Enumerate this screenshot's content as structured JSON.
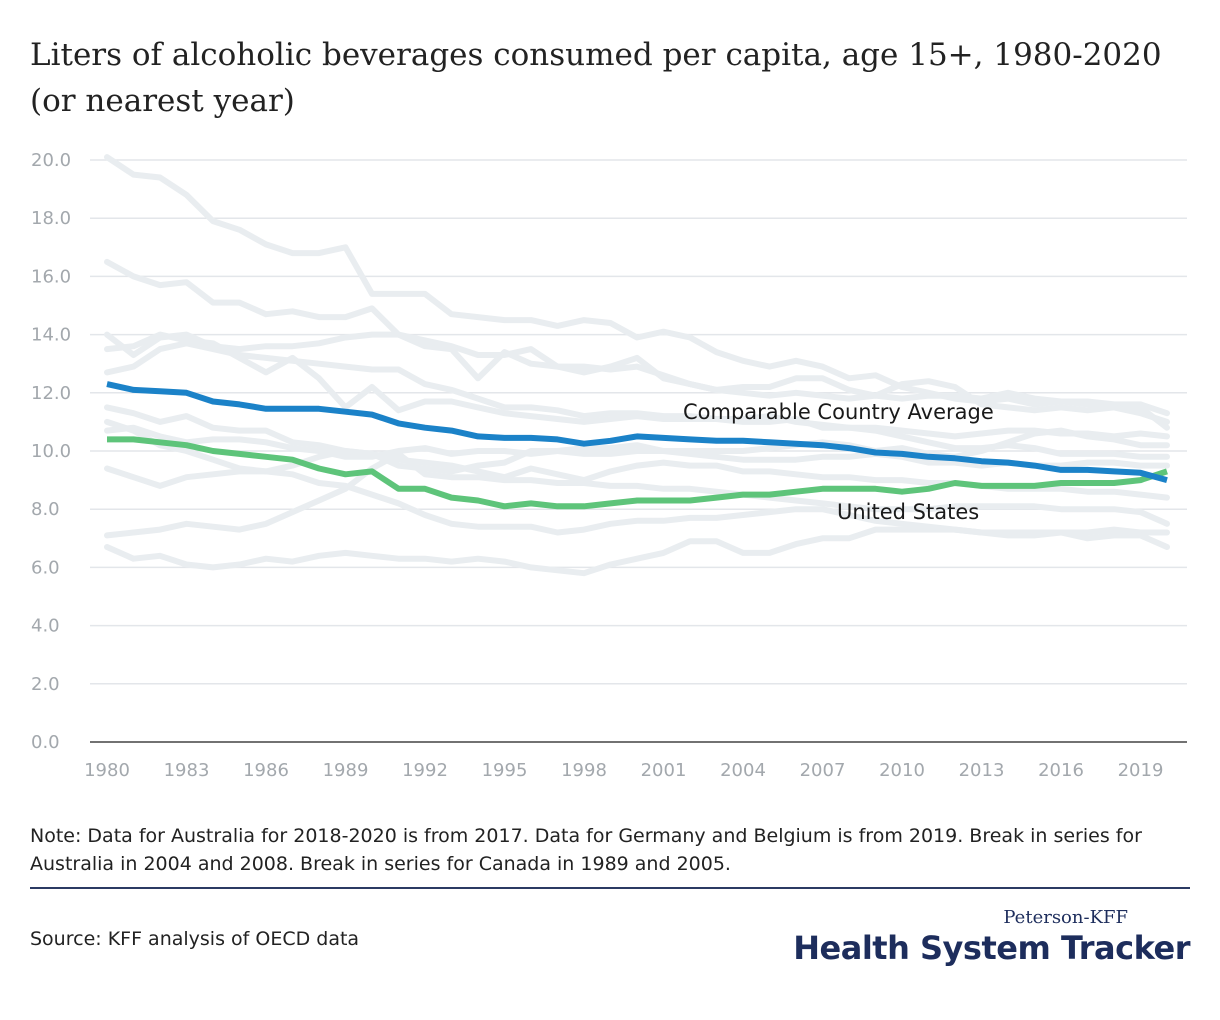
{
  "title": "Liters of alcoholic beverages consumed per capita, age 15+, 1980-2020 (or nearest year)",
  "note": "Note: Data for Australia for 2018-2020 is from 2017. Data for Germany and  Belgium is from 2019. Break in series for Australia in 2004 and 2008. Break in series for Canada in 1989 and 2005.",
  "source": "Source: KFF analysis of OECD data",
  "logo": {
    "top": "Peterson-KFF",
    "main": "Health System Tracker"
  },
  "colors": {
    "average": "#1b82c8",
    "us": "#5ec47a",
    "background_lines": "#e9edf0",
    "grid": "#e3e6ea",
    "axis": "#444444"
  },
  "chart_data": {
    "type": "line",
    "ylim": [
      0,
      20
    ],
    "y_ticks": [
      "0.0",
      "2.0",
      "4.0",
      "6.0",
      "8.0",
      "10.0",
      "12.0",
      "14.0",
      "16.0",
      "18.0",
      "20.0"
    ],
    "x_ticks": [
      "1980",
      "1983",
      "1986",
      "1989",
      "1992",
      "1995",
      "1998",
      "2001",
      "2004",
      "2007",
      "2010",
      "2013",
      "2016",
      "2019"
    ],
    "grid": true,
    "x": [
      1980,
      1981,
      1982,
      1983,
      1984,
      1985,
      1986,
      1987,
      1988,
      1989,
      1990,
      1991,
      1992,
      1993,
      1994,
      1995,
      1996,
      1997,
      1998,
      1999,
      2000,
      2001,
      2002,
      2003,
      2004,
      2005,
      2006,
      2007,
      2008,
      2009,
      2010,
      2011,
      2012,
      2013,
      2014,
      2015,
      2016,
      2017,
      2018,
      2019,
      2020
    ],
    "series": [
      {
        "name": "Comparable Country Average",
        "highlight": true,
        "values": [
          12.3,
          12.1,
          12.05,
          12.0,
          11.7,
          11.6,
          11.45,
          11.45,
          11.45,
          11.35,
          11.25,
          10.95,
          10.8,
          10.7,
          10.5,
          10.45,
          10.45,
          10.4,
          10.25,
          10.35,
          10.5,
          10.45,
          10.4,
          10.35,
          10.35,
          10.3,
          10.25,
          10.2,
          10.1,
          9.95,
          9.9,
          9.8,
          9.75,
          9.65,
          9.6,
          9.5,
          9.35,
          9.35,
          9.3,
          9.25,
          9.0
        ]
      },
      {
        "name": "United States",
        "highlight": true,
        "values": [
          10.4,
          10.4,
          10.3,
          10.2,
          10.0,
          9.9,
          9.8,
          9.7,
          9.4,
          9.2,
          9.3,
          8.7,
          8.7,
          8.4,
          8.3,
          8.1,
          8.2,
          8.1,
          8.1,
          8.2,
          8.3,
          8.3,
          8.3,
          8.4,
          8.5,
          8.5,
          8.6,
          8.7,
          8.7,
          8.7,
          8.6,
          8.7,
          8.9,
          8.8,
          8.8,
          8.8,
          8.9,
          8.9,
          8.9,
          9.0,
          9.3
        ]
      },
      {
        "values": [
          20.1,
          19.5,
          19.4,
          18.8,
          17.9,
          17.6,
          17.1,
          16.8,
          16.8,
          17.0,
          15.4,
          15.4,
          15.4,
          14.7,
          14.6,
          14.5,
          14.5,
          14.3,
          14.5,
          14.4,
          13.9,
          14.1,
          13.9,
          13.4,
          13.1,
          12.9,
          13.1,
          12.9,
          12.5,
          12.6,
          12.2,
          12.0,
          11.8,
          11.7,
          11.8,
          11.6,
          11.7,
          11.7,
          11.6,
          11.6,
          11.3
        ]
      },
      {
        "values": [
          16.5,
          16.0,
          15.7,
          15.8,
          15.1,
          15.1,
          14.7,
          14.8,
          14.6,
          14.6,
          14.9,
          14.0,
          13.6,
          13.5,
          12.5,
          13.4,
          13.0,
          12.9,
          12.7,
          12.9,
          13.2,
          12.5,
          12.3,
          12.1,
          12.2,
          12.2,
          12.5,
          12.5,
          12.1,
          11.9,
          12.3,
          12.4,
          12.2,
          11.6,
          11.5,
          11.4,
          11.5,
          11.4,
          11.5,
          11.5,
          10.8
        ]
      },
      {
        "values": [
          13.5,
          13.6,
          14.0,
          13.8,
          13.7,
          13.2,
          12.7,
          13.2,
          12.5,
          11.5,
          12.2,
          11.4,
          11.7,
          11.7,
          11.5,
          11.3,
          11.2,
          11.1,
          11.0,
          11.1,
          11.2,
          11.1,
          11.1,
          11.1,
          11.1,
          11.2,
          11.0,
          10.9,
          10.8,
          10.7,
          10.5,
          10.3,
          10.1,
          10.1,
          10.2,
          10.1,
          9.9,
          9.9,
          9.9,
          9.8,
          9.8
        ]
      },
      {
        "values": [
          14.0,
          13.3,
          13.9,
          14.0,
          13.6,
          13.5,
          13.6,
          13.6,
          13.7,
          13.9,
          14.0,
          14.0,
          13.8,
          13.6,
          13.3,
          13.3,
          13.5,
          12.9,
          12.9,
          12.8,
          12.9,
          12.6,
          12.3,
          12.1,
          12.0,
          11.9,
          12.0,
          11.9,
          11.8,
          11.9,
          11.8,
          11.9,
          11.9,
          11.8,
          12.0,
          11.8,
          11.7,
          11.6,
          11.5,
          11.3,
          11.0
        ]
      },
      {
        "values": [
          12.7,
          12.9,
          13.5,
          13.7,
          13.5,
          13.3,
          13.2,
          13.1,
          13.0,
          12.9,
          12.8,
          12.8,
          12.3,
          12.1,
          11.8,
          11.5,
          11.5,
          11.4,
          11.2,
          11.3,
          11.3,
          11.2,
          11.2,
          11.1,
          11.0,
          11.0,
          11.1,
          10.8,
          10.8,
          10.8,
          10.7,
          10.6,
          10.5,
          10.6,
          10.7,
          10.7,
          10.6,
          10.6,
          10.5,
          10.6,
          10.5
        ]
      },
      {
        "values": [
          11.5,
          11.3,
          11.0,
          11.2,
          10.8,
          10.7,
          10.7,
          10.3,
          10.2,
          10.0,
          9.9,
          9.7,
          9.6,
          9.5,
          9.3,
          9.1,
          9.4,
          9.2,
          9.0,
          9.3,
          9.5,
          9.6,
          9.5,
          9.5,
          9.3,
          9.3,
          9.2,
          9.1,
          9.1,
          9.0,
          9.0,
          8.9,
          8.9,
          8.8,
          8.7,
          8.7,
          8.7,
          8.6,
          8.6,
          8.5,
          8.4
        ]
      },
      {
        "values": [
          10.7,
          10.8,
          10.5,
          10.3,
          10.4,
          10.4,
          10.3,
          10.1,
          10.0,
          9.8,
          9.8,
          10.0,
          10.1,
          9.9,
          10.0,
          10.0,
          9.9,
          10.0,
          10.1,
          10.1,
          10.2,
          10.0,
          9.9,
          9.8,
          9.7,
          9.7,
          9.7,
          9.8,
          9.8,
          9.9,
          9.8,
          9.6,
          9.6,
          9.5,
          9.6,
          9.5,
          9.5,
          9.6,
          9.6,
          9.5,
          9.5
        ]
      },
      {
        "values": [
          9.4,
          9.1,
          8.8,
          9.1,
          9.2,
          9.3,
          9.3,
          9.5,
          9.8,
          10.0,
          9.9,
          9.5,
          9.4,
          9.3,
          9.5,
          9.6,
          10.0,
          10.0,
          9.9,
          9.9,
          10.0,
          10.0,
          10.0,
          10.0,
          10.0,
          10.1,
          10.2,
          10.3,
          10.2,
          10.0,
          10.1,
          9.9,
          9.8,
          10.0,
          10.3,
          10.6,
          10.7,
          10.5,
          10.4,
          10.2,
          10.2
        ]
      },
      {
        "values": [
          7.1,
          7.2,
          7.3,
          7.5,
          7.4,
          7.3,
          7.5,
          7.9,
          8.3,
          8.7,
          9.4,
          9.9,
          9.2,
          9.1,
          9.1,
          9.0,
          9.0,
          8.9,
          8.9,
          8.8,
          8.8,
          8.7,
          8.7,
          8.6,
          8.5,
          8.4,
          8.3,
          8.2,
          8.1,
          8.0,
          8.0,
          8.0,
          8.1,
          8.1,
          8.1,
          8.1,
          8.0,
          8.0,
          8.0,
          7.9,
          7.5
        ]
      },
      {
        "values": [
          11.0,
          10.7,
          10.2,
          10.0,
          9.7,
          9.4,
          9.3,
          9.2,
          8.9,
          8.8,
          8.5,
          8.2,
          7.8,
          7.5,
          7.4,
          7.4,
          7.4,
          7.2,
          7.3,
          7.5,
          7.6,
          7.6,
          7.7,
          7.7,
          7.8,
          7.9,
          8.0,
          8.0,
          7.8,
          7.6,
          7.5,
          7.4,
          7.3,
          7.2,
          7.2,
          7.2,
          7.2,
          7.2,
          7.3,
          7.2,
          7.2
        ]
      },
      {
        "values": [
          6.7,
          6.3,
          6.4,
          6.1,
          6.0,
          6.1,
          6.3,
          6.2,
          6.4,
          6.5,
          6.4,
          6.3,
          6.3,
          6.2,
          6.3,
          6.2,
          6.0,
          5.9,
          5.8,
          6.1,
          6.3,
          6.5,
          6.9,
          6.9,
          6.5,
          6.5,
          6.8,
          7.0,
          7.0,
          7.3,
          7.3,
          7.3,
          7.3,
          7.2,
          7.1,
          7.1,
          7.2,
          7.0,
          7.1,
          7.1,
          6.7
        ]
      }
    ],
    "annotations": [
      {
        "text": "Comparable Country Average",
        "series": "Comparable Country Average"
      },
      {
        "text": "United States",
        "series": "United States"
      }
    ]
  }
}
